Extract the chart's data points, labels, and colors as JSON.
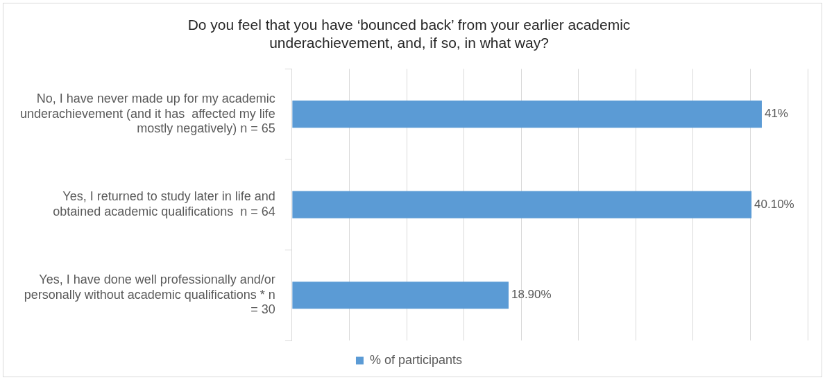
{
  "chart_data": {
    "type": "bar",
    "orientation": "horizontal",
    "title": "Do you feel that you have ‘bounced back’ from your earlier academic underachievement, and, if so, in what way?",
    "categories": [
      "No, I have never made up for my academic underachievement (and it has  affected my life mostly negatively) n = 65",
      "Yes, I returned to study later in life and obtained academic qualifications  n = 64",
      "Yes, I have done well professionally and/or personally without academic qualifications * n = 30"
    ],
    "series": [
      {
        "name": "% of participants",
        "color": "#5b9bd5",
        "values": [
          41,
          40.1,
          18.9
        ],
        "value_labels": [
          "41%",
          "40.10%",
          "18.90%"
        ]
      }
    ],
    "xlim": [
      0,
      45
    ],
    "xticks": [
      {
        "value": 0,
        "label": null
      },
      {
        "value": 5,
        "label": null
      },
      {
        "value": 10,
        "label": null
      },
      {
        "value": 15,
        "label": null
      },
      {
        "value": 20,
        "label": null
      },
      {
        "value": 25,
        "label": null
      },
      {
        "value": 30,
        "label": null
      },
      {
        "value": 35,
        "label": null
      },
      {
        "value": 40,
        "label": null
      },
      {
        "value": 45,
        "label": null
      }
    ],
    "tick_labels": "y",
    "grid": "x",
    "legend": "bottom"
  }
}
